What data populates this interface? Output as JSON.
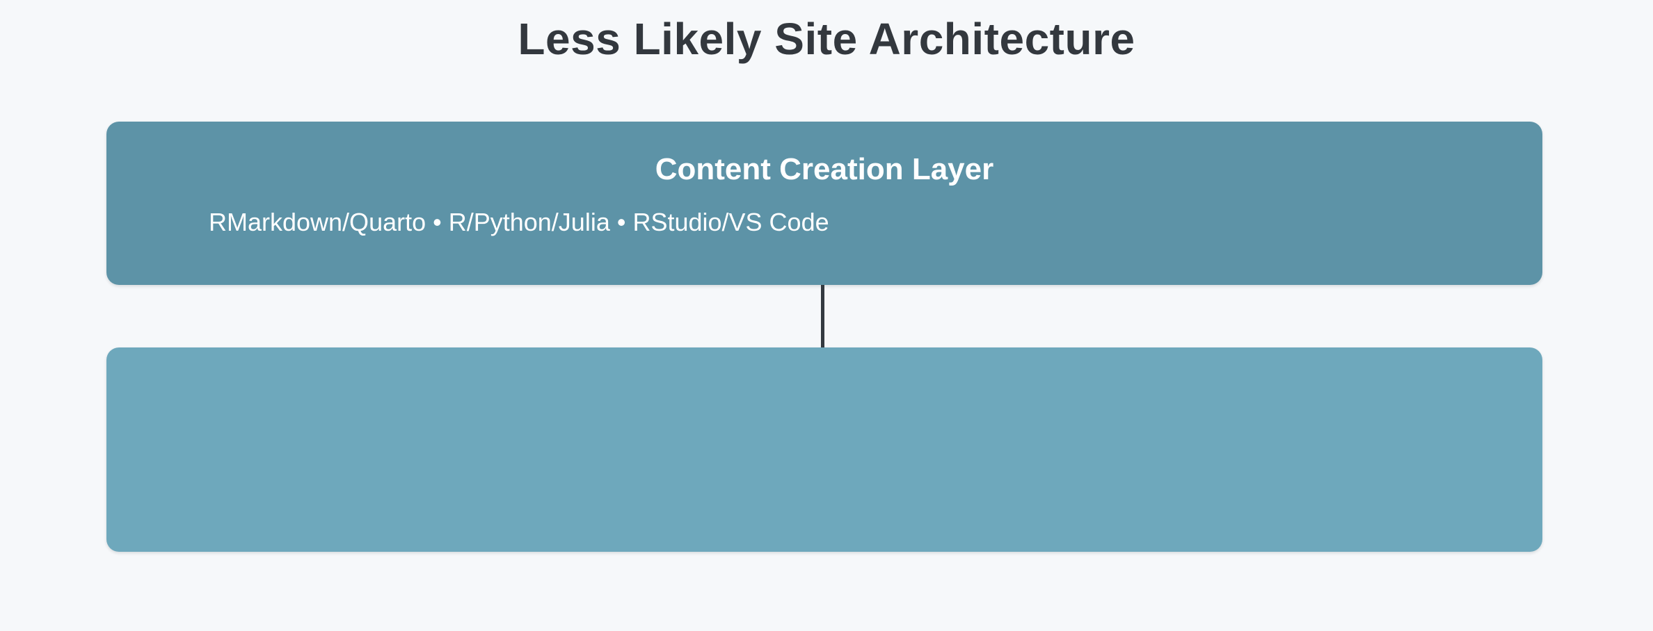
{
  "title": "Less Likely Site Architecture",
  "diagram": {
    "layers": [
      {
        "title": "Content Creation Layer",
        "subtitle": "RMarkdown/Quarto • R/Python/Julia • RStudio/VS Code",
        "color": "#5d93a7"
      },
      {
        "title": "",
        "subtitle": "",
        "color": "#6ea8bc"
      }
    ],
    "connector_color": "#343a40"
  },
  "colors": {
    "background": "#f6f8fa",
    "title_text": "#33383e",
    "layer_text": "#ffffff"
  }
}
